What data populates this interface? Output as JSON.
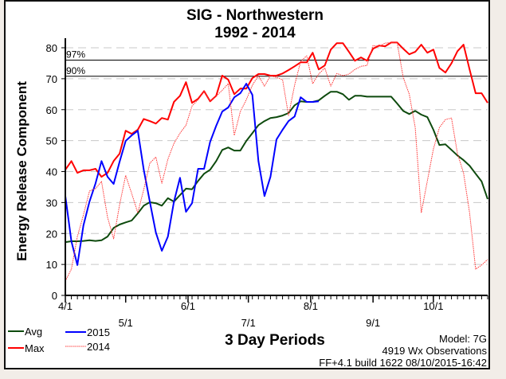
{
  "chart_data": {
    "type": "line",
    "title": "SIG - Northwestern",
    "subtitle": "1992 - 2014",
    "xlabel": "3 Day Periods",
    "ylabel": "Energy Release Component",
    "ylim": [
      0,
      80
    ],
    "y_ticks": [
      0,
      10,
      20,
      30,
      40,
      50,
      60,
      70,
      80
    ],
    "x_ticks": [
      "4/1",
      "5/1",
      "6/1",
      "7/1",
      "8/1",
      "9/1",
      "10/1"
    ],
    "grid": "dashed horizontal",
    "legend_placement": "bottom-left",
    "thresholds": [
      {
        "label": "97%",
        "value": 76
      },
      {
        "label": "90%",
        "value": 70.8
      }
    ],
    "series": [
      {
        "name": "Avg",
        "color": "#0d4a0d",
        "style": "solid",
        "values": [
          17.2,
          17.5,
          17.5,
          17.6,
          17.8,
          17.6,
          17.8,
          19,
          21.8,
          22.9,
          23.6,
          24.2,
          26.5,
          29,
          30.1,
          29.8,
          29,
          31.4,
          30.3,
          32.4,
          34.5,
          34.3,
          37,
          39.3,
          40.6,
          43.4,
          47,
          47.8,
          46.8,
          46.8,
          49.9,
          52.4,
          55,
          56.3,
          57.3,
          57.6,
          58.1,
          58.9,
          61.4,
          62.7,
          62.5,
          62.5,
          63,
          64.5,
          65.8,
          65.8,
          65,
          63.2,
          64.5,
          64.5,
          64.2,
          64.2,
          64.2,
          64.2,
          64.2,
          62,
          59.6,
          58.6,
          59.6,
          58.4,
          57.6,
          53.5,
          48.6,
          48.8,
          47,
          45.2,
          43.7,
          41.9,
          39.3,
          36.8,
          31.1
        ]
      },
      {
        "name": "Max",
        "color": "#ff0000",
        "style": "solid",
        "values": [
          40.6,
          43.4,
          39.6,
          40.4,
          40.4,
          40.9,
          38.3,
          39.6,
          43.4,
          45.8,
          53.2,
          52.2,
          53.5,
          57,
          56.3,
          55.5,
          57.3,
          56.8,
          62.5,
          64.5,
          68.9,
          62.2,
          63.5,
          66,
          62.7,
          64.5,
          71,
          69.7,
          65,
          66.8,
          66.8,
          70.2,
          71.5,
          71.5,
          71,
          71,
          71.7,
          72.8,
          74,
          75.3,
          75.3,
          78.4,
          73,
          74.3,
          79.4,
          81.5,
          81.5,
          78.7,
          75.8,
          76.9,
          75.8,
          79.7,
          80.7,
          80.5,
          81.7,
          81.7,
          79.7,
          77.9,
          78.7,
          81,
          78.4,
          79.4,
          73.5,
          72,
          75,
          78.9,
          81,
          73,
          65.3,
          65.3,
          62.2
        ]
      },
      {
        "name": "2015",
        "color": "#0000ff",
        "style": "solid",
        "values": [
          32.1,
          17.5,
          9.8,
          22.6,
          30.3,
          36.2,
          43.4,
          38.3,
          36,
          43.2,
          49.9,
          51.7,
          53.2,
          40.6,
          30.3,
          20.3,
          14.4,
          19,
          30.3,
          38,
          27,
          29.8,
          40.9,
          40.9,
          49.6,
          54.8,
          59.4,
          60.7,
          64,
          65.3,
          68.4,
          64.8,
          43.4,
          32.1,
          38.3,
          50.4,
          53.5,
          56.3,
          57.8,
          64,
          62.5,
          62.5,
          62.7
        ]
      },
      {
        "name": "2014",
        "color": "#ff3333",
        "style": "dotted",
        "values": [
          4.6,
          8.5,
          19,
          26,
          33.7,
          34.5,
          36.8,
          25.2,
          18.3,
          29.3,
          38.8,
          32.9,
          26.7,
          34.2,
          42.7,
          44.7,
          36.2,
          44,
          49.1,
          52.4,
          55,
          61.2,
          63.2,
          66,
          62.7,
          64.3,
          66.3,
          68.4,
          51.7,
          59.4,
          63.2,
          67.9,
          71,
          67.6,
          71,
          70.4,
          69.7,
          58.1,
          67.9,
          75.6,
          77.4,
          68.4,
          71.5,
          73.5,
          67.6,
          71.7,
          71,
          71.5,
          73,
          74,
          74.3,
          80.7,
          80.5,
          81.5,
          81.7,
          81.7,
          70.4,
          65,
          54.2,
          26.7,
          37,
          47.3,
          54.2,
          56.8,
          57.3,
          45.8,
          39.6,
          26.7,
          8.5,
          9.8,
          11.6
        ]
      }
    ]
  },
  "footer": {
    "model": "Model: 7G",
    "observations": "4919 Wx Observations",
    "build": "FF+4.1 build 1622 08/10/2015-16:42"
  }
}
